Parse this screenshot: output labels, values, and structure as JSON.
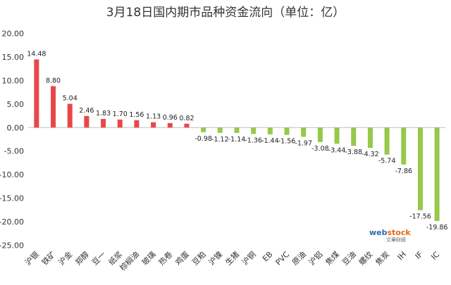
{
  "chart_data": {
    "type": "bar",
    "title": "3月18日国内期市品种资金流向（单位：亿）",
    "xlabel": "",
    "ylabel": "",
    "ylim": [
      -25,
      20
    ],
    "yticks": [
      "-25.00",
      "-20.00",
      "-15.00",
      "-10.00",
      "-5.00",
      "0.00",
      "5.00",
      "10.00",
      "15.00",
      "20.00"
    ],
    "categories": [
      "沪银",
      "铁矿",
      "沪金",
      "郑醇",
      "豆一",
      "纸浆",
      "棕榈油",
      "玻璃",
      "热卷",
      "鸡蛋",
      "豆粕",
      "沪镍",
      "生猪",
      "沪铜",
      "EB",
      "PVC",
      "原油",
      "沪铝",
      "焦煤",
      "豆油",
      "螺纹",
      "焦炭",
      "IH",
      "IF",
      "IC"
    ],
    "values": [
      14.48,
      8.8,
      5.04,
      2.46,
      1.83,
      1.7,
      1.56,
      1.13,
      0.96,
      0.82,
      -0.98,
      -1.12,
      -1.14,
      -1.36,
      -1.44,
      -1.56,
      -1.97,
      -3.08,
      -3.44,
      -3.88,
      -4.32,
      -5.74,
      -7.86,
      -17.56,
      -19.86
    ],
    "value_labels": [
      "14.48",
      "8.80",
      "5.04",
      "2.46",
      "1.83",
      "1.70",
      "1.56",
      "1.13",
      "0.96",
      "0.82",
      "-0.98",
      "-1.12",
      "-1.14",
      "-1.36",
      "-1.44",
      "-1.56",
      "-1.97",
      "-3.08",
      "-3.44",
      "-3.88",
      "-4.32",
      "-5.74",
      "-7.86",
      "-17.56",
      "-19.86"
    ],
    "colors": {
      "positive": "#e8474a",
      "negative": "#96c84a"
    },
    "grid": false,
    "legend": "none"
  },
  "watermark": {
    "brand_a": "web",
    "brand_b": "stock",
    "sub": "文華財經"
  }
}
